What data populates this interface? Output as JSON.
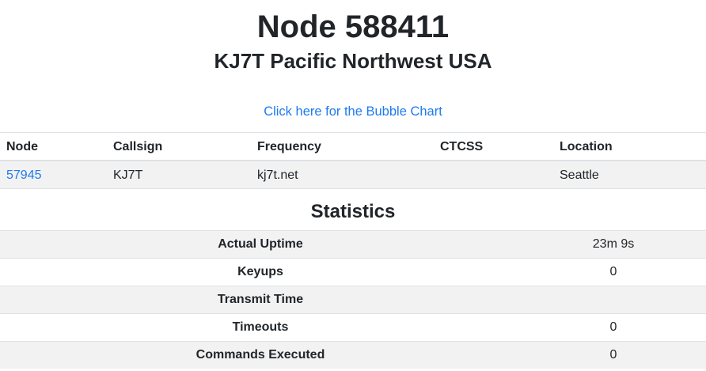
{
  "page": {
    "title": "Node 588411",
    "subtitle": "KJ7T Pacific Northwest USA",
    "bubble_link_label": "Click here for the Bubble Chart"
  },
  "colors": {
    "link": "#1f7bf0",
    "stripe": "#f2f2f2",
    "border": "#dee2e6",
    "text": "#212529"
  },
  "nodes_table": {
    "headers": [
      "Node",
      "Callsign",
      "Frequency",
      "CTCSS",
      "Location"
    ],
    "rows": [
      {
        "node": "57945",
        "callsign": "KJ7T",
        "frequency": "kj7t.net",
        "ctcss": "",
        "location": "Seattle"
      }
    ]
  },
  "statistics": {
    "heading": "Statistics",
    "rows": [
      {
        "label": "Actual Uptime",
        "value": "23m 9s"
      },
      {
        "label": "Keyups",
        "value": "0"
      },
      {
        "label": "Transmit Time",
        "value": ""
      },
      {
        "label": "Timeouts",
        "value": "0"
      },
      {
        "label": "Commands Executed",
        "value": "0"
      }
    ]
  }
}
